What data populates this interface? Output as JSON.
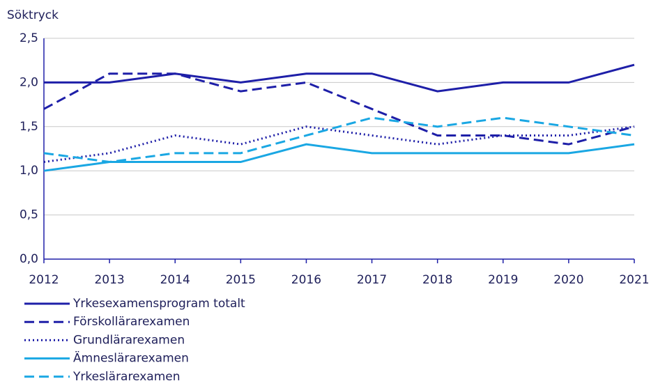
{
  "chart_data": {
    "type": "line",
    "ylabel": "Söktryck",
    "x": [
      2012,
      2013,
      2014,
      2015,
      2016,
      2017,
      2018,
      2019,
      2020,
      2021
    ],
    "xlim": [
      2012,
      2021
    ],
    "xticks": [
      2012,
      2013,
      2014,
      2015,
      2016,
      2017,
      2018,
      2019,
      2020,
      2021
    ],
    "ylim": [
      0,
      2.5
    ],
    "yticks": [
      {
        "value": 0,
        "label": "0,0"
      },
      {
        "value": 0.5,
        "label": "0,5"
      },
      {
        "value": 1,
        "label": "1,0"
      },
      {
        "value": 1.5,
        "label": "1,5"
      },
      {
        "value": 2,
        "label": "2,0"
      },
      {
        "value": 2.5,
        "label": "2,5"
      }
    ],
    "grid": true,
    "series": [
      {
        "name": "Yrkesexamensprogram totalt",
        "color": "#1e1fa8",
        "style": "solid",
        "values": [
          2.0,
          2.0,
          2.1,
          2.0,
          2.1,
          2.1,
          1.9,
          2.0,
          2.0,
          2.2
        ]
      },
      {
        "name": "Förskollärarexamen",
        "color": "#1e1fa8",
        "style": "dashed",
        "values": [
          1.7,
          2.1,
          2.1,
          1.9,
          2.0,
          1.7,
          1.4,
          1.4,
          1.3,
          1.5
        ]
      },
      {
        "name": "Grundlärarexamen",
        "color": "#1e1fa8",
        "style": "dotted",
        "values": [
          1.1,
          1.2,
          1.4,
          1.3,
          1.5,
          1.4,
          1.3,
          1.4,
          1.4,
          1.5
        ]
      },
      {
        "name": "Ämneslärarexamen",
        "color": "#1aa7e3",
        "style": "solid",
        "values": [
          1.0,
          1.1,
          1.1,
          1.1,
          1.3,
          1.2,
          1.2,
          1.2,
          1.2,
          1.3
        ]
      },
      {
        "name": "Yrkeslärarexamen",
        "color": "#1aa7e3",
        "style": "dashed",
        "values": [
          1.2,
          1.1,
          1.2,
          1.2,
          1.4,
          1.6,
          1.5,
          1.6,
          1.5,
          1.4
        ]
      }
    ]
  }
}
